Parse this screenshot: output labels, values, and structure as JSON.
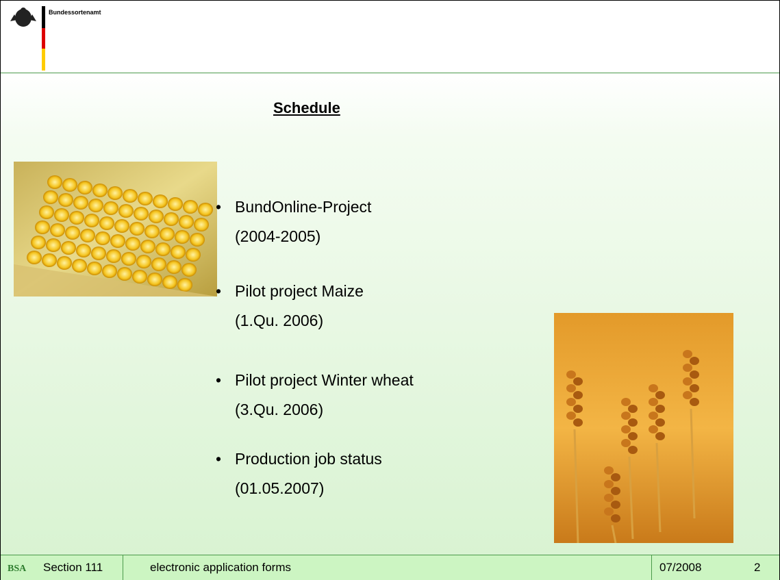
{
  "header": {
    "org": "Bundessortenamt"
  },
  "title": "Schedule",
  "items": [
    {
      "name": "BundOnline-Project",
      "date": "(2004-2005)"
    },
    {
      "name": "Pilot project Maize",
      "date": "(1.Qu. 2006)"
    },
    {
      "name": "Pilot project Winter wheat",
      "date": "(3.Qu. 2006)"
    },
    {
      "name": "Production job status",
      "date": "(01.05.2007)"
    }
  ],
  "footer": {
    "logo": "BSA",
    "section": "Section 111",
    "subject": "electronic application forms",
    "date": "07/2008",
    "page": "2"
  }
}
